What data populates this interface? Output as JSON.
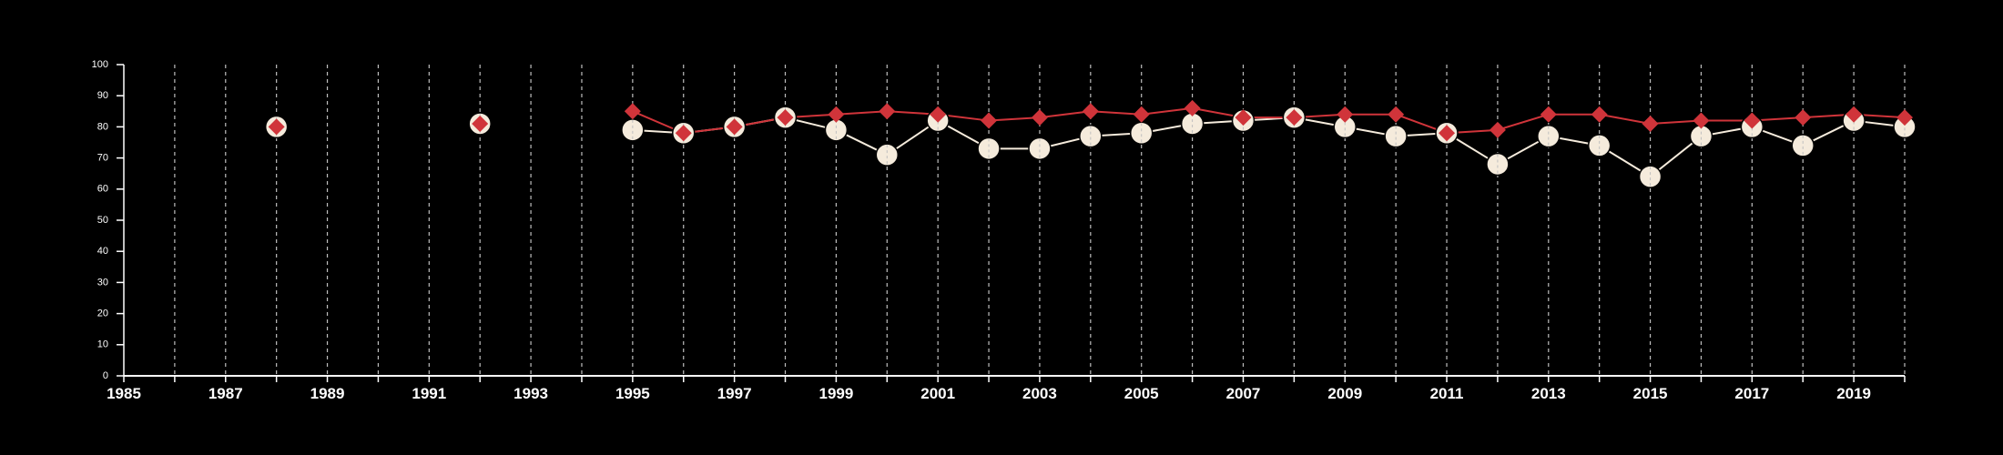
{
  "chart_data": {
    "type": "line",
    "title": "",
    "xlabel": "",
    "ylabel": "",
    "xlim": [
      1985,
      2020
    ],
    "ylim": [
      0,
      100
    ],
    "x_tick_labels": [
      1985,
      1987,
      1989,
      1991,
      1993,
      1995,
      1997,
      1999,
      2001,
      2003,
      2005,
      2007,
      2009,
      2011,
      2013,
      2015,
      2017,
      2019
    ],
    "y_tick_labels": [
      0,
      10,
      20,
      30,
      40,
      50,
      60,
      70,
      80,
      90,
      100
    ],
    "grid": "vertical dashed lines at each year",
    "background": "#000000",
    "x": [
      1988,
      1992,
      1995,
      1996,
      1997,
      1998,
      1999,
      2000,
      2001,
      2002,
      2003,
      2004,
      2005,
      2006,
      2007,
      2008,
      2009,
      2010,
      2011,
      2012,
      2013,
      2014,
      2015,
      2016,
      2017,
      2018,
      2019,
      2020
    ],
    "series": [
      {
        "marker": "circle",
        "color": "#f5ebdc",
        "values": [
          80,
          81,
          79,
          78,
          80,
          83,
          79,
          71,
          82,
          73,
          73,
          77,
          78,
          81,
          82,
          83,
          80,
          77,
          78,
          68,
          77,
          74,
          64,
          77,
          80,
          74,
          82,
          80
        ]
      },
      {
        "marker": "diamond",
        "color": "#d0343a",
        "values": [
          80,
          81,
          85,
          78,
          80,
          83,
          84,
          85,
          84,
          82,
          83,
          85,
          84,
          86,
          83,
          83,
          84,
          84,
          78,
          79,
          84,
          84,
          81,
          82,
          82,
          83,
          84,
          83
        ]
      }
    ]
  }
}
